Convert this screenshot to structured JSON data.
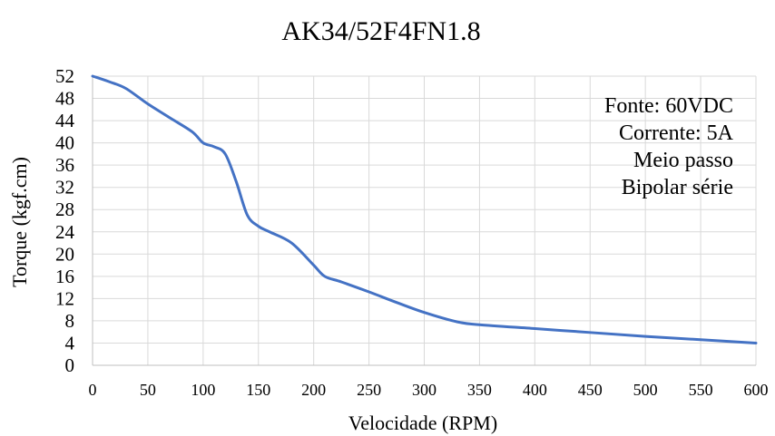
{
  "chart_data": {
    "type": "line",
    "title": "AK34/52F4FN1.8",
    "xlabel": "Velocidade (RPM)",
    "ylabel": "Torque (kgf.cm)",
    "xlim": [
      0,
      600
    ],
    "ylim": [
      0,
      52
    ],
    "xticks": [
      0,
      50,
      100,
      150,
      200,
      250,
      300,
      350,
      400,
      450,
      500,
      550,
      600
    ],
    "yticks": [
      0,
      4,
      8,
      12,
      16,
      20,
      24,
      28,
      32,
      36,
      40,
      44,
      48,
      52
    ],
    "grid": true,
    "line_color": "#4472c4",
    "annotations": [
      "Fonte: 60VDC",
      "Corrente: 5A",
      "Meio passo",
      "Bipolar série"
    ],
    "series": [
      {
        "x": [
          0,
          15,
          30,
          50,
          70,
          90,
          100,
          110,
          120,
          130,
          140,
          150,
          160,
          180,
          200,
          210,
          225,
          250,
          275,
          300,
          330,
          350,
          400,
          450,
          500,
          550,
          600
        ],
        "y": [
          52,
          51,
          49.8,
          47,
          44.5,
          42,
          40,
          39.3,
          38,
          33,
          27,
          25,
          24,
          22,
          18,
          16,
          15,
          13.2,
          11.3,
          9.5,
          7.8,
          7.3,
          6.6,
          5.9,
          5.2,
          4.6,
          4.0
        ]
      }
    ]
  }
}
